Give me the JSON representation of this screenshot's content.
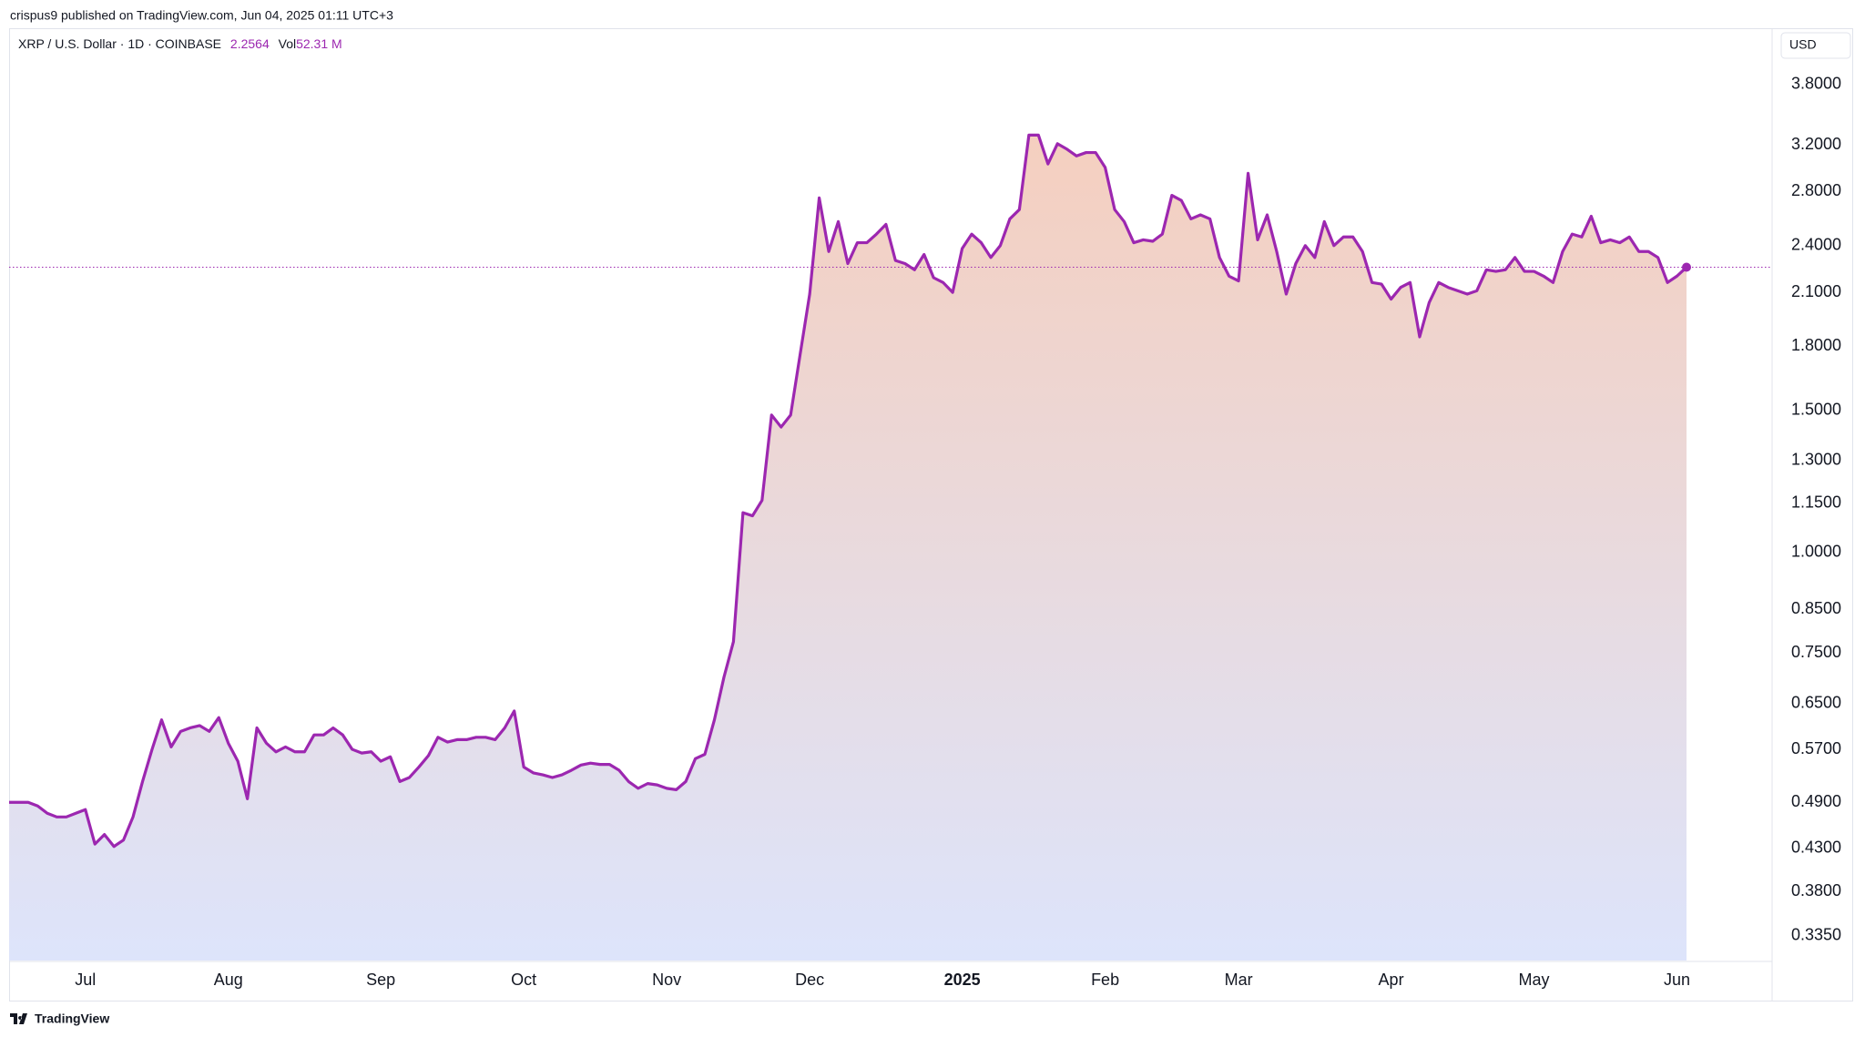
{
  "header": {
    "published": "crispus9 published on TradingView.com, Jun 04, 2025 01:11 UTC+3",
    "symbol": "XRP / U.S. Dollar · 1D · COINBASE",
    "volume_label": "Vol",
    "volume": "52.31 M",
    "currency": "USD",
    "brand": "TradingView"
  },
  "chart_data": {
    "type": "line",
    "log_scale": true,
    "grid": false,
    "color": "#9c27b0",
    "categories": [
      null,
      null,
      null,
      null,
      null,
      null,
      null,
      null,
      "Jul",
      null,
      null,
      null,
      null,
      null,
      null,
      null,
      null,
      null,
      null,
      null,
      null,
      null,
      null,
      "Aug",
      null,
      null,
      null,
      null,
      null,
      null,
      null,
      null,
      null,
      null,
      null,
      null,
      null,
      null,
      null,
      "Sep",
      null,
      null,
      null,
      null,
      null,
      null,
      null,
      null,
      null,
      null,
      null,
      null,
      null,
      null,
      "Oct",
      null,
      null,
      null,
      null,
      null,
      null,
      null,
      null,
      null,
      null,
      null,
      null,
      null,
      null,
      "Nov",
      null,
      null,
      null,
      null,
      null,
      null,
      null,
      null,
      null,
      null,
      null,
      null,
      null,
      null,
      "Dec",
      null,
      null,
      null,
      null,
      null,
      null,
      null,
      null,
      null,
      null,
      null,
      null,
      null,
      null,
      null,
      "2025",
      null,
      null,
      null,
      null,
      null,
      null,
      null,
      null,
      null,
      null,
      null,
      null,
      null,
      null,
      "Feb",
      null,
      null,
      null,
      null,
      null,
      null,
      null,
      null,
      null,
      null,
      null,
      null,
      null,
      "Mar",
      null,
      null,
      null,
      null,
      null,
      null,
      null,
      null,
      null,
      null,
      null,
      null,
      null,
      null,
      null,
      "Apr",
      null,
      null,
      null,
      null,
      null,
      null,
      null,
      null,
      null,
      null,
      null,
      null,
      null,
      null,
      "May",
      null,
      null,
      null,
      null,
      null,
      null,
      null,
      null,
      null,
      null,
      null,
      null,
      null,
      null,
      "Jun",
      null
    ],
    "values": [
      0.49,
      0.49,
      0.49,
      0.485,
      0.475,
      0.47,
      0.47,
      0.475,
      0.48,
      0.435,
      0.447,
      0.432,
      0.44,
      0.47,
      0.52,
      0.57,
      0.62,
      0.574,
      0.6,
      0.606,
      0.61,
      0.6,
      0.624,
      0.58,
      0.551,
      0.495,
      0.606,
      0.58,
      0.566,
      0.574,
      0.566,
      0.566,
      0.594,
      0.594,
      0.606,
      0.594,
      0.57,
      0.564,
      0.566,
      0.551,
      0.558,
      0.52,
      0.526,
      0.542,
      0.56,
      0.59,
      0.582,
      0.586,
      0.586,
      0.59,
      0.59,
      0.586,
      0.606,
      0.636,
      0.542,
      0.533,
      0.53,
      0.526,
      0.53,
      0.537,
      0.545,
      0.548,
      0.546,
      0.546,
      0.537,
      0.52,
      0.51,
      0.517,
      0.515,
      0.51,
      0.508,
      0.52,
      0.555,
      0.562,
      0.62,
      0.7,
      0.775,
      1.12,
      1.11,
      1.16,
      1.48,
      1.43,
      1.48,
      1.76,
      2.09,
      2.75,
      2.36,
      2.57,
      2.28,
      2.42,
      2.42,
      2.48,
      2.55,
      2.3,
      2.28,
      2.24,
      2.34,
      2.19,
      2.16,
      2.1,
      2.38,
      2.48,
      2.42,
      2.32,
      2.4,
      2.59,
      2.66,
      3.29,
      3.29,
      3.03,
      3.21,
      3.16,
      3.1,
      3.13,
      3.13,
      3.0,
      2.66,
      2.57,
      2.42,
      2.44,
      2.43,
      2.48,
      2.77,
      2.73,
      2.59,
      2.62,
      2.59,
      2.32,
      2.2,
      2.17,
      2.95,
      2.44,
      2.62,
      2.36,
      2.09,
      2.28,
      2.4,
      2.32,
      2.57,
      2.4,
      2.46,
      2.46,
      2.36,
      2.16,
      2.15,
      2.06,
      2.13,
      2.16,
      1.85,
      2.04,
      2.16,
      2.13,
      2.11,
      2.09,
      2.11,
      2.24,
      2.23,
      2.24,
      2.32,
      2.23,
      2.23,
      2.2,
      2.16,
      2.36,
      2.48,
      2.46,
      2.61,
      2.42,
      2.44,
      2.42,
      2.46,
      2.36,
      2.36,
      2.32,
      2.16,
      2.2,
      2.2564
    ],
    "ylim": [
      0.312,
      4.44
    ],
    "yticks": [
      {
        "value": 3.8,
        "label": "3.8000"
      },
      {
        "value": 3.2,
        "label": "3.2000"
      },
      {
        "value": 2.8,
        "label": "2.8000"
      },
      {
        "value": 2.4,
        "label": "2.4000"
      },
      {
        "value": 2.1,
        "label": "2.1000"
      },
      {
        "value": 1.8,
        "label": "1.8000"
      },
      {
        "value": 1.5,
        "label": "1.5000"
      },
      {
        "value": 1.3,
        "label": "1.3000"
      },
      {
        "value": 1.15,
        "label": "1.1500"
      },
      {
        "value": 1.0,
        "label": "1.0000"
      },
      {
        "value": 0.85,
        "label": "0.8500"
      },
      {
        "value": 0.75,
        "label": "0.7500"
      },
      {
        "value": 0.65,
        "label": "0.6500"
      },
      {
        "value": 0.57,
        "label": "0.5700"
      },
      {
        "value": 0.49,
        "label": "0.4900"
      },
      {
        "value": 0.43,
        "label": "0.4300"
      },
      {
        "value": 0.38,
        "label": "0.3800"
      },
      {
        "value": 0.335,
        "label": "0.3350"
      }
    ]
  }
}
